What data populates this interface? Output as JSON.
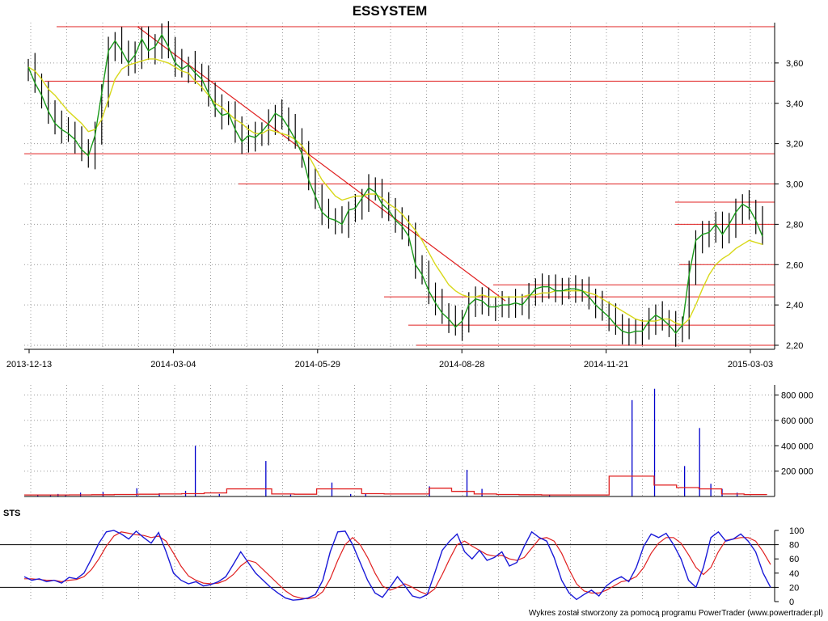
{
  "title": "ESSYSTEM",
  "footer": "Wykres został stworzony za pomocą programu PowerTrader (www.powertrader.pl)",
  "colors": {
    "trend": "#e02020",
    "fast_ma": "#1a9a1a",
    "slow_ma": "#d8d81a",
    "volume": "#0000cc",
    "volume_avg": "#e02020",
    "sts_k": "#1a1ad8",
    "sts_d": "#e02020"
  },
  "chart_data": [
    {
      "type": "line",
      "panel": "price",
      "title": "ESSYSTEM",
      "x_tick_labels": [
        "2013-12-13",
        "2014-03-04",
        "2014-05-29",
        "2014-08-28",
        "2014-11-21",
        "2015-03-03"
      ],
      "y_tick_labels": [
        "3,60",
        "3,40",
        "3,20",
        "3,00",
        "2,80",
        "2,60",
        "2,40",
        "2,20"
      ],
      "ylim": [
        2.18,
        3.8
      ],
      "grid": true,
      "series": [
        {
          "values": [
            3.58,
            3.5,
            3.44,
            3.36,
            3.3,
            3.27,
            3.25,
            3.22,
            3.17,
            3.14,
            3.24,
            3.45,
            3.66,
            3.71,
            3.66,
            3.6,
            3.64,
            3.72,
            3.66,
            3.68,
            3.74,
            3.68,
            3.6,
            3.57,
            3.59,
            3.55,
            3.52,
            3.45,
            3.38,
            3.34,
            3.35,
            3.27,
            3.21,
            3.24,
            3.23,
            3.26,
            3.3,
            3.35,
            3.33,
            3.28,
            3.22,
            3.15,
            3.02,
            2.94,
            2.86,
            2.83,
            2.82,
            2.8,
            2.87,
            2.88,
            2.93,
            2.98,
            2.96,
            2.9,
            2.87,
            2.82,
            2.79,
            2.74,
            2.6,
            2.55,
            2.47,
            2.41,
            2.36,
            2.33,
            2.29,
            2.32,
            2.4,
            2.43,
            2.42,
            2.39,
            2.39,
            2.4,
            2.4,
            2.41,
            2.4,
            2.44,
            2.48,
            2.49,
            2.49,
            2.47,
            2.47,
            2.48,
            2.48,
            2.47,
            2.44,
            2.4,
            2.37,
            2.34,
            2.3,
            2.27,
            2.26,
            2.27,
            2.27,
            2.32,
            2.35,
            2.33,
            2.3,
            2.26,
            2.3,
            2.55,
            2.72,
            2.75,
            2.76,
            2.8,
            2.75,
            2.8,
            2.86,
            2.9,
            2.88,
            2.82,
            2.74
          ]
        },
        {
          "values": [
            3.58,
            3.56,
            3.52,
            3.47,
            3.44,
            3.4,
            3.36,
            3.33,
            3.3,
            3.26,
            3.27,
            3.32,
            3.42,
            3.52,
            3.57,
            3.59,
            3.6,
            3.61,
            3.62,
            3.62,
            3.61,
            3.6,
            3.58,
            3.56,
            3.55,
            3.51,
            3.48,
            3.44,
            3.4,
            3.38,
            3.35,
            3.32,
            3.3,
            3.27,
            3.25,
            3.25,
            3.27,
            3.26,
            3.25,
            3.24,
            3.22,
            3.19,
            3.14,
            3.08,
            3.02,
            2.98,
            2.94,
            2.92,
            2.93,
            2.94,
            2.94,
            2.95,
            2.95,
            2.93,
            2.9,
            2.88,
            2.85,
            2.81,
            2.77,
            2.72,
            2.66,
            2.6,
            2.55,
            2.5,
            2.47,
            2.45,
            2.44,
            2.44,
            2.45,
            2.44,
            2.44,
            2.44,
            2.44,
            2.44,
            2.44,
            2.45,
            2.45,
            2.46,
            2.46,
            2.47,
            2.47,
            2.47,
            2.47,
            2.47,
            2.46,
            2.45,
            2.43,
            2.41,
            2.39,
            2.37,
            2.35,
            2.33,
            2.32,
            2.32,
            2.32,
            2.33,
            2.33,
            2.31,
            2.3,
            2.33,
            2.4,
            2.48,
            2.55,
            2.6,
            2.63,
            2.65,
            2.68,
            2.7,
            2.72,
            2.71,
            2.7
          ]
        }
      ],
      "support_resistance_levels": [
        3.78,
        3.51,
        3.15,
        3.0,
        2.91,
        2.8,
        2.6,
        2.5,
        2.44,
        2.3,
        2.2
      ],
      "trendline": {
        "from": 3.78,
        "to": 2.42
      }
    },
    {
      "type": "bar",
      "panel": "volume",
      "y_tick_labels": [
        "800 000",
        "600 000",
        "400 000",
        "200 000"
      ],
      "ylim": [
        0,
        880000
      ],
      "spikes": [
        {
          "pos": 0.018,
          "value": 10000
        },
        {
          "pos": 0.035,
          "value": 12000
        },
        {
          "pos": 0.045,
          "value": 20000
        },
        {
          "pos": 0.055,
          "value": 15000
        },
        {
          "pos": 0.075,
          "value": 30000
        },
        {
          "pos": 0.105,
          "value": 35000
        },
        {
          "pos": 0.15,
          "value": 65000
        },
        {
          "pos": 0.18,
          "value": 25000
        },
        {
          "pos": 0.215,
          "value": 45000
        },
        {
          "pos": 0.228,
          "value": 400000
        },
        {
          "pos": 0.26,
          "value": 20000
        },
        {
          "pos": 0.322,
          "value": 280000
        },
        {
          "pos": 0.355,
          "value": 15000
        },
        {
          "pos": 0.41,
          "value": 110000
        },
        {
          "pos": 0.435,
          "value": 20000
        },
        {
          "pos": 0.455,
          "value": 25000
        },
        {
          "pos": 0.54,
          "value": 80000
        },
        {
          "pos": 0.59,
          "value": 210000
        },
        {
          "pos": 0.61,
          "value": 60000
        },
        {
          "pos": 0.7,
          "value": 10000
        },
        {
          "pos": 0.81,
          "value": 760000
        },
        {
          "pos": 0.84,
          "value": 850000
        },
        {
          "pos": 0.88,
          "value": 240000
        },
        {
          "pos": 0.9,
          "value": 540000
        },
        {
          "pos": 0.915,
          "value": 100000
        },
        {
          "pos": 0.93,
          "value": 60000
        },
        {
          "pos": 0.95,
          "value": 30000
        }
      ],
      "average": [
        12000,
        12000,
        13000,
        14000,
        16000,
        18000,
        20000,
        22000,
        28000,
        60000,
        60000,
        20000,
        18000,
        60000,
        60000,
        22000,
        20000,
        20000,
        65000,
        40000,
        20000,
        16000,
        14000,
        12000,
        12000,
        12000,
        160000,
        160000,
        90000,
        70000,
        60000,
        20000,
        15000,
        12000
      ]
    },
    {
      "type": "line",
      "panel": "oscillator",
      "title": "STS",
      "y_tick_labels": [
        "100",
        "80",
        "60",
        "40",
        "20",
        "0"
      ],
      "ylim": [
        0,
        100
      ],
      "reference_lines": [
        80,
        20
      ],
      "series": [
        {
          "values": [
            35,
            30,
            32,
            28,
            30,
            26,
            34,
            32,
            40,
            60,
            82,
            98,
            100,
            95,
            88,
            99,
            90,
            82,
            97,
            70,
            40,
            30,
            25,
            28,
            22,
            24,
            28,
            35,
            52,
            70,
            55,
            40,
            30,
            20,
            12,
            5,
            2,
            3,
            5,
            10,
            30,
            70,
            98,
            99,
            80,
            55,
            30,
            12,
            6,
            20,
            35,
            22,
            8,
            5,
            10,
            40,
            72,
            85,
            95,
            70,
            60,
            72,
            58,
            62,
            70,
            50,
            55,
            78,
            98,
            90,
            85,
            62,
            30,
            12,
            3,
            10,
            16,
            8,
            22,
            30,
            35,
            28,
            48,
            78,
            95,
            90,
            96,
            80,
            60,
            30,
            20,
            48,
            90,
            98,
            85,
            88,
            95,
            85,
            70,
            40,
            20
          ]
        },
        {
          "values": [
            32,
            32,
            31,
            30,
            30,
            28,
            30,
            31,
            35,
            45,
            60,
            78,
            92,
            98,
            96,
            94,
            93,
            90,
            92,
            85,
            68,
            50,
            36,
            30,
            26,
            25,
            26,
            30,
            38,
            50,
            58,
            55,
            45,
            35,
            25,
            15,
            8,
            5,
            4,
            6,
            14,
            32,
            58,
            80,
            90,
            80,
            62,
            40,
            22,
            16,
            20,
            25,
            20,
            14,
            10,
            18,
            38,
            60,
            80,
            85,
            78,
            72,
            66,
            64,
            65,
            60,
            58,
            62,
            75,
            88,
            90,
            85,
            68,
            45,
            25,
            15,
            12,
            12,
            16,
            22,
            28,
            30,
            35,
            48,
            68,
            82,
            90,
            90,
            82,
            66,
            48,
            38,
            48,
            70,
            86,
            88,
            90,
            90,
            85,
            70,
            52
          ]
        }
      ]
    }
  ]
}
